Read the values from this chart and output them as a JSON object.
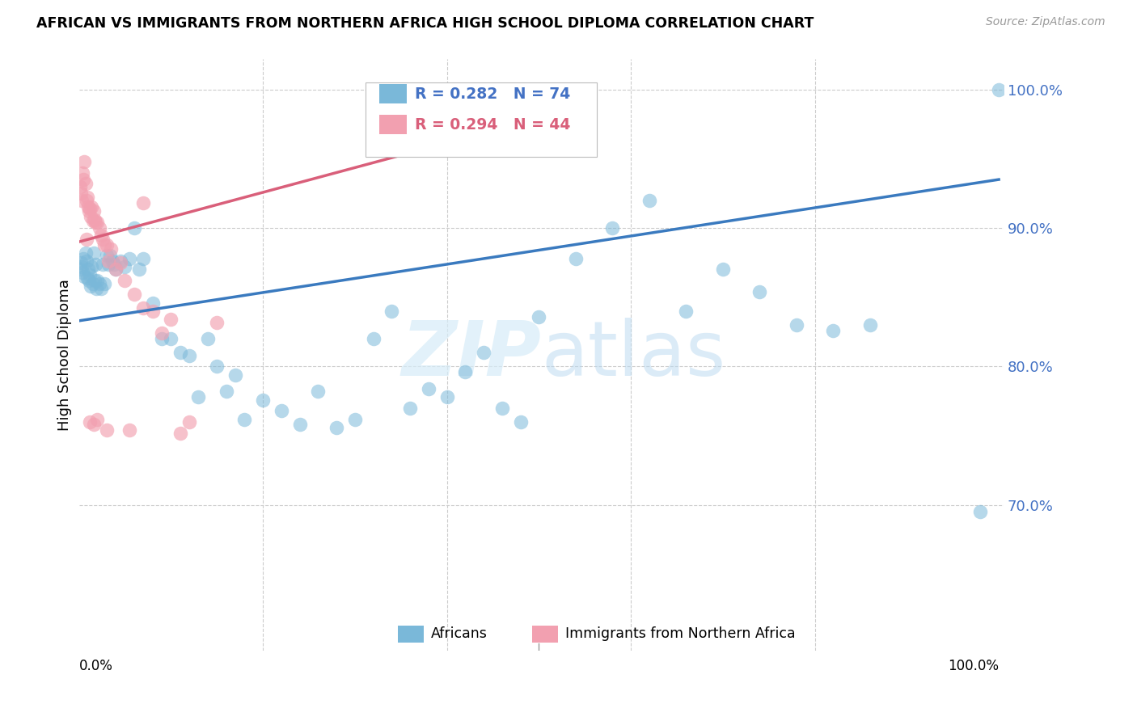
{
  "title": "AFRICAN VS IMMIGRANTS FROM NORTHERN AFRICA HIGH SCHOOL DIPLOMA CORRELATION CHART",
  "source": "Source: ZipAtlas.com",
  "ylabel": "High School Diploma",
  "legend_africans": "Africans",
  "legend_immigrants": "Immigrants from Northern Africa",
  "R_africans": 0.282,
  "N_africans": 74,
  "R_immigrants": 0.294,
  "N_immigrants": 44,
  "blue_color": "#7ab8d9",
  "pink_color": "#f2a0b0",
  "blue_line_color": "#3a7abf",
  "pink_line_color": "#d95f7a",
  "blue_text_color": "#4472c4",
  "pink_text_color": "#d95f7a",
  "right_axis_color": "#4472c4",
  "watermark_color": "#d6ecf8",
  "africans_x": [
    0.001,
    0.002,
    0.003,
    0.004,
    0.005,
    0.006,
    0.007,
    0.008,
    0.009,
    0.01,
    0.011,
    0.012,
    0.013,
    0.014,
    0.015,
    0.016,
    0.017,
    0.018,
    0.019,
    0.02,
    0.022,
    0.024,
    0.026,
    0.028,
    0.03,
    0.032,
    0.034,
    0.036,
    0.038,
    0.04,
    0.045,
    0.05,
    0.055,
    0.06,
    0.065,
    0.07,
    0.08,
    0.09,
    0.1,
    0.11,
    0.12,
    0.13,
    0.14,
    0.15,
    0.16,
    0.17,
    0.18,
    0.2,
    0.22,
    0.24,
    0.26,
    0.28,
    0.3,
    0.32,
    0.34,
    0.36,
    0.38,
    0.4,
    0.42,
    0.44,
    0.46,
    0.48,
    0.5,
    0.54,
    0.58,
    0.62,
    0.66,
    0.7,
    0.74,
    0.78,
    0.82,
    0.86,
    0.98,
    1.0
  ],
  "africans_y": [
    0.87,
    0.875,
    0.872,
    0.868,
    0.878,
    0.865,
    0.882,
    0.876,
    0.864,
    0.87,
    0.862,
    0.866,
    0.858,
    0.872,
    0.86,
    0.882,
    0.862,
    0.874,
    0.856,
    0.862,
    0.86,
    0.856,
    0.874,
    0.86,
    0.88,
    0.874,
    0.88,
    0.876,
    0.874,
    0.87,
    0.876,
    0.872,
    0.878,
    0.9,
    0.87,
    0.878,
    0.846,
    0.82,
    0.82,
    0.81,
    0.808,
    0.778,
    0.82,
    0.8,
    0.782,
    0.794,
    0.762,
    0.776,
    0.768,
    0.758,
    0.782,
    0.756,
    0.762,
    0.82,
    0.84,
    0.77,
    0.784,
    0.778,
    0.796,
    0.81,
    0.77,
    0.76,
    0.836,
    0.878,
    0.9,
    0.92,
    0.84,
    0.87,
    0.854,
    0.83,
    0.826,
    0.83,
    0.695,
    1.0
  ],
  "immigrants_x": [
    0.001,
    0.002,
    0.003,
    0.004,
    0.005,
    0.006,
    0.007,
    0.008,
    0.009,
    0.01,
    0.011,
    0.012,
    0.013,
    0.014,
    0.015,
    0.016,
    0.017,
    0.018,
    0.02,
    0.022,
    0.024,
    0.026,
    0.028,
    0.03,
    0.032,
    0.035,
    0.04,
    0.045,
    0.05,
    0.06,
    0.07,
    0.08,
    0.09,
    0.1,
    0.12,
    0.15,
    0.008,
    0.012,
    0.016,
    0.02,
    0.03,
    0.055,
    0.07,
    0.11
  ],
  "immigrants_y": [
    0.93,
    0.925,
    0.92,
    0.94,
    0.935,
    0.948,
    0.932,
    0.92,
    0.922,
    0.915,
    0.912,
    0.914,
    0.908,
    0.915,
    0.905,
    0.912,
    0.906,
    0.904,
    0.904,
    0.9,
    0.895,
    0.892,
    0.888,
    0.888,
    0.876,
    0.885,
    0.87,
    0.875,
    0.862,
    0.852,
    0.842,
    0.84,
    0.824,
    0.834,
    0.76,
    0.832,
    0.892,
    0.76,
    0.758,
    0.762,
    0.754,
    0.754,
    0.918,
    0.752
  ],
  "blue_line_x": [
    0.0,
    1.0
  ],
  "blue_line_y": [
    0.833,
    0.935
  ],
  "pink_line_x": [
    0.0,
    0.42
  ],
  "pink_line_y": [
    0.89,
    0.965
  ],
  "ylim": [
    0.595,
    1.022
  ],
  "xlim": [
    0.0,
    1.005
  ],
  "yticks": [
    0.7,
    0.8,
    0.9,
    1.0
  ],
  "ytick_labels": [
    "70.0%",
    "80.0%",
    "90.0%",
    "100.0%"
  ]
}
